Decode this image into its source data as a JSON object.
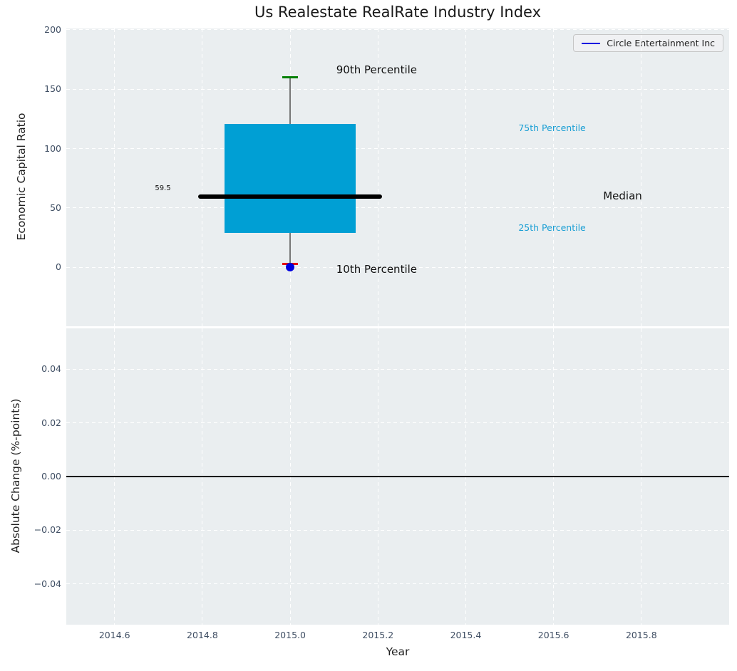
{
  "figure": {
    "title": "Us Realestate RealRate Industry Index",
    "legend": {
      "label": "Circle Entertainment Inc",
      "line_color": "#0000e0"
    }
  },
  "chart_data": [
    {
      "type": "boxplot",
      "title": "Us Realestate RealRate Industry Index",
      "ylabel": "Economic Capital Ratio",
      "xlim": [
        2014.49,
        2016.0
      ],
      "ylim": [
        -49.8,
        201.2
      ],
      "grid": true,
      "legend_position": "upper right",
      "yticks": {
        "values": [
          0,
          50,
          100,
          150,
          200
        ],
        "labels": [
          "0",
          "50",
          "100",
          "150",
          "200"
        ]
      },
      "box": {
        "x": 2015.0,
        "p10": 3,
        "q1": 28.8,
        "median": 59.5,
        "q3": 121,
        "p90": 160,
        "median_label": "59.5",
        "box_halfwidth": 0.15,
        "median_halfwidth": 0.21,
        "box_color": "#009fd4",
        "whisker_color": "#777777",
        "p90_color": "#007f00",
        "p10_color": "#e60000",
        "median_color": "#000000"
      },
      "point": {
        "x": 2015.0,
        "y": 0,
        "color": "#0000e0",
        "label": "Circle Entertainment Inc"
      },
      "annotations": [
        {
          "name": "annotation-90th-percentile",
          "text": "90th Percentile",
          "x": 2015.105,
          "y": 166,
          "color": "#111111",
          "size": 15,
          "align": "left"
        },
        {
          "name": "annotation-10th-percentile",
          "text": "10th Percentile",
          "x": 2015.105,
          "y": -1.8,
          "color": "#111111",
          "size": 15,
          "align": "left"
        },
        {
          "name": "annotation-median-value",
          "text": "59.5",
          "x": 2014.728,
          "y": 66,
          "color": "#111111",
          "size": 10,
          "align": "right"
        },
        {
          "name": "annotation-75th-percentile",
          "text": "75th Percentile",
          "x": 2015.52,
          "y": 117,
          "color": "#1b9fd4",
          "size": 12.5,
          "align": "left"
        },
        {
          "name": "annotation-median",
          "text": "Median",
          "x": 2015.713,
          "y": 60,
          "color": "#111111",
          "size": 15,
          "align": "left"
        },
        {
          "name": "annotation-25th-percentile",
          "text": "25th Percentile",
          "x": 2015.52,
          "y": 33,
          "color": "#1b9fd4",
          "size": 12.5,
          "align": "left"
        }
      ]
    },
    {
      "type": "line",
      "ylabel": "Absolute Change (%-points)",
      "xlabel": "Year",
      "xlim": [
        2014.49,
        2016.0
      ],
      "ylim": [
        -0.0551,
        0.0551
      ],
      "grid": true,
      "zero_line": 0.0,
      "yticks": {
        "values": [
          0.04,
          0.02,
          0,
          -0.02,
          -0.04
        ],
        "labels": [
          "0.04",
          "0.02",
          "0.00",
          "−0.02",
          "−0.04"
        ]
      },
      "xticks": {
        "values": [
          2014.6,
          2014.8,
          2015.0,
          2015.2,
          2015.4,
          2015.6,
          2015.8
        ],
        "labels": [
          "2014.6",
          "2014.8",
          "2015.0",
          "2015.2",
          "2015.4",
          "2015.6",
          "2015.8"
        ]
      }
    }
  ]
}
